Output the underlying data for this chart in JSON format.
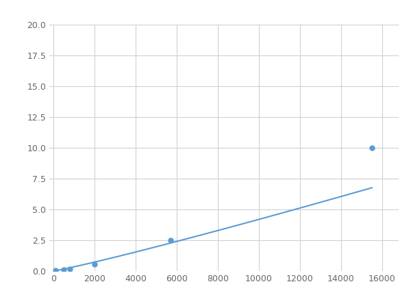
{
  "x": [
    100,
    500,
    800,
    2000,
    5700,
    15500
  ],
  "y": [
    0.05,
    0.12,
    0.16,
    0.55,
    2.5,
    10.0
  ],
  "line_color": "#5b9bd5",
  "marker_color": "#5b9bd5",
  "marker_size": 5,
  "xlim": [
    -200,
    16800
  ],
  "ylim": [
    0,
    20.0
  ],
  "xticks": [
    0,
    2000,
    4000,
    6000,
    8000,
    10000,
    12000,
    14000,
    16000
  ],
  "yticks": [
    0.0,
    2.5,
    5.0,
    7.5,
    10.0,
    12.5,
    15.0,
    17.5,
    20.0
  ],
  "grid": true,
  "background_color": "#ffffff",
  "figsize": [
    6.0,
    4.5
  ],
  "dpi": 100
}
